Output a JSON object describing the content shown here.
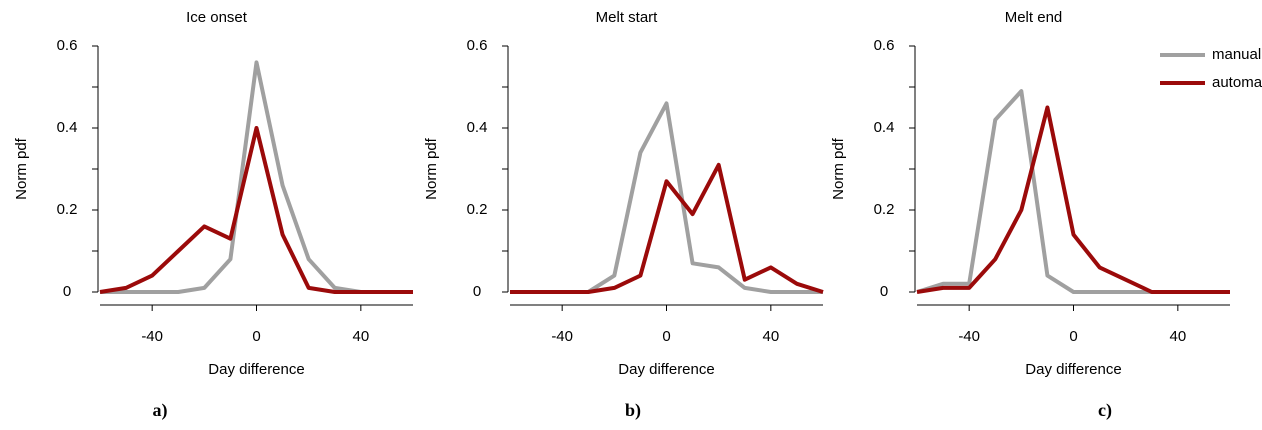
{
  "chart_data": [
    {
      "type": "line",
      "title": "Ice onset",
      "panel_label": "a)",
      "xlabel": "Day difference",
      "ylabel": "Norm pdf",
      "x": [
        -60,
        -50,
        -40,
        -30,
        -20,
        -10,
        0,
        10,
        20,
        30,
        40,
        50,
        60
      ],
      "series": [
        {
          "color": "#a0a0a0",
          "values": [
            0,
            0,
            0,
            0,
            0.01,
            0.08,
            0.56,
            0.26,
            0.08,
            0.01,
            0,
            0,
            0
          ]
        },
        {
          "color": "#9b0a0a",
          "values": [
            0,
            0.01,
            0.04,
            0.1,
            0.16,
            0.13,
            0.4,
            0.14,
            0.01,
            0,
            0,
            0,
            0
          ]
        }
      ],
      "xlim": [
        -60,
        60
      ],
      "ylim": [
        0,
        0.6
      ],
      "xticks": [
        -40,
        0,
        40
      ],
      "yticks": [
        0,
        0.2,
        0.4,
        0.6
      ],
      "yminorticks": [
        0.1,
        0.3,
        0.5
      ]
    },
    {
      "type": "line",
      "title": "Melt start",
      "panel_label": "b)",
      "xlabel": "Day difference",
      "ylabel": "Norm pdf",
      "x": [
        -60,
        -50,
        -40,
        -30,
        -20,
        -10,
        0,
        10,
        20,
        30,
        40,
        50,
        60
      ],
      "series": [
        {
          "color": "#a0a0a0",
          "values": [
            0,
            0,
            0,
            0,
            0.04,
            0.34,
            0.46,
            0.07,
            0.06,
            0.01,
            0,
            0,
            0
          ]
        },
        {
          "color": "#9b0a0a",
          "values": [
            0,
            0,
            0,
            0,
            0.01,
            0.04,
            0.27,
            0.19,
            0.31,
            0.03,
            0.06,
            0.02,
            0
          ]
        }
      ],
      "xlim": [
        -60,
        60
      ],
      "ylim": [
        0,
        0.6
      ],
      "xticks": [
        -40,
        0,
        40
      ],
      "yticks": [
        0,
        0.2,
        0.4,
        0.6
      ],
      "yminorticks": [
        0.1,
        0.3,
        0.5
      ]
    },
    {
      "type": "line",
      "title": "Melt end",
      "panel_label": "c)",
      "xlabel": "Day difference",
      "ylabel": "Norm pdf",
      "x": [
        -60,
        -50,
        -40,
        -30,
        -20,
        -10,
        0,
        10,
        20,
        30,
        40,
        50,
        60
      ],
      "series": [
        {
          "name": "manual",
          "color": "#a0a0a0",
          "values": [
            0,
            0.02,
            0.02,
            0.42,
            0.49,
            0.04,
            0,
            0,
            0,
            0,
            0,
            0,
            0
          ]
        },
        {
          "name": "automated",
          "color": "#9b0a0a",
          "values": [
            0,
            0.01,
            0.01,
            0.08,
            0.2,
            0.45,
            0.14,
            0.06,
            0.03,
            0,
            0,
            0,
            0
          ]
        }
      ],
      "xlim": [
        -60,
        60
      ],
      "ylim": [
        0,
        0.6
      ],
      "xticks": [
        -40,
        0,
        40
      ],
      "yticks": [
        0,
        0.2,
        0.4,
        0.6
      ],
      "yminorticks": [
        0.1,
        0.3,
        0.5
      ],
      "legend": "top-right"
    }
  ]
}
